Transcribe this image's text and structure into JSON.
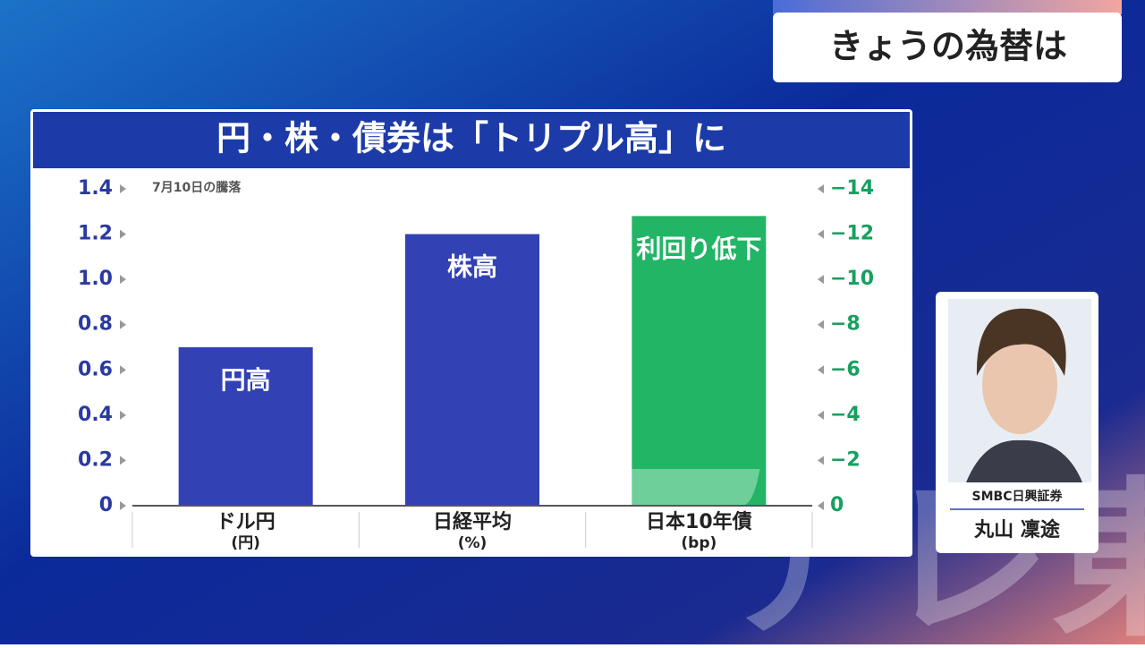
{
  "header": {
    "title": "きょうの為替は"
  },
  "chart_data": {
    "type": "bar",
    "title": "円・株・債券は「トリプル高」に",
    "subtitle": "7月10日の騰落",
    "categories": [
      "ドル円",
      "日経平均",
      "日本10年債"
    ],
    "category_units": [
      "(円)",
      "(%)",
      "(bp)"
    ],
    "series": [
      {
        "color": "#3241b4",
        "values": [
          0.7,
          1.2,
          null
        ],
        "labels": [
          "円高",
          "株高",
          null
        ]
      },
      {
        "axis": "y2",
        "color": "#22b566",
        "values": [
          null,
          null,
          -12.8
        ],
        "labels": [
          null,
          null,
          "利回り低下"
        ]
      }
    ],
    "ylim": [
      0,
      1.4
    ],
    "yticks": [
      0,
      0.2,
      0.4,
      0.6,
      0.8,
      {
        "value": 1,
        "label": "1.0"
      },
      1.2,
      1.4
    ],
    "y2lim": [
      0,
      -14
    ],
    "y2ticks": [
      0,
      {
        "value": -2,
        "label": "−2"
      },
      {
        "value": -4,
        "label": "−4"
      },
      {
        "value": -6,
        "label": "−6"
      },
      {
        "value": -8,
        "label": "−8"
      },
      {
        "value": -10,
        "label": "−10"
      },
      {
        "value": -12,
        "label": "−12"
      },
      {
        "value": -14,
        "label": "−14"
      }
    ]
  },
  "guest": {
    "company": "SMBC日興証券",
    "name": "丸山 凜途"
  },
  "watermark": "テレ東"
}
